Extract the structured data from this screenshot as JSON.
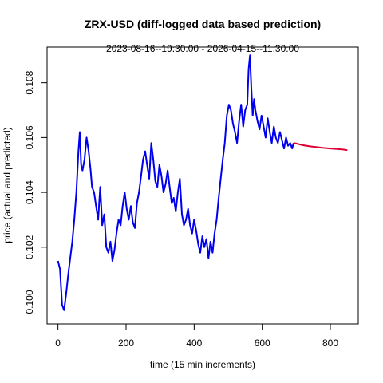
{
  "chart_data": {
    "type": "line",
    "title": "ZRX-USD (diff-logged data based prediction)",
    "subtitle": "2023-08-16--19:30:00  -  2026-04-15--11:30:00",
    "xlabel": "time (15 min increments)",
    "ylabel": "price (actual and predicted)",
    "xlim": [
      -32,
      882
    ],
    "ylim": [
      0.0992,
      0.1093
    ],
    "xticks": [
      0,
      200,
      400,
      600,
      800
    ],
    "yticks": [
      0.1,
      0.102,
      0.104,
      0.106,
      0.108
    ],
    "ytick_labels": [
      "0.100",
      "0.102",
      "0.104",
      "0.106",
      "0.108"
    ],
    "colors": {
      "actual": "#0000ee",
      "predicted": "#dd0033"
    },
    "series": [
      {
        "role": "actual",
        "x": [
          0,
          6,
          12,
          18,
          24,
          30,
          36,
          42,
          48,
          54,
          60,
          64,
          68,
          72,
          78,
          84,
          90,
          96,
          100,
          106,
          112,
          118,
          124,
          130,
          136,
          142,
          148,
          154,
          160,
          166,
          172,
          178,
          184,
          190,
          196,
          202,
          208,
          214,
          220,
          226,
          232,
          238,
          244,
          250,
          256,
          262,
          268,
          274,
          280,
          286,
          292,
          298,
          304,
          310,
          316,
          322,
          328,
          334,
          340,
          346,
          352,
          358,
          364,
          370,
          376,
          382,
          388,
          394,
          400,
          406,
          412,
          418,
          424,
          430,
          436,
          442,
          448,
          454,
          460,
          466,
          472,
          478,
          484,
          490,
          496,
          502,
          508,
          514,
          520,
          526,
          532,
          538,
          544,
          550,
          556,
          560,
          564,
          568,
          572,
          576,
          580,
          586,
          592,
          598,
          604,
          610,
          616,
          622,
          628,
          634,
          640,
          646,
          652,
          658,
          664,
          670,
          676,
          682,
          688,
          692
        ],
        "y": [
          0.1015,
          0.1012,
          0.0999,
          0.0997,
          0.1003,
          0.101,
          0.1016,
          0.1022,
          0.103,
          0.104,
          0.1055,
          0.1062,
          0.105,
          0.1048,
          0.1052,
          0.106,
          0.1055,
          0.1048,
          0.1042,
          0.104,
          0.1035,
          0.103,
          0.1042,
          0.1028,
          0.1032,
          0.102,
          0.1018,
          0.1022,
          0.1015,
          0.1019,
          0.1025,
          0.103,
          0.1028,
          0.1035,
          0.104,
          0.1034,
          0.103,
          0.1035,
          0.1029,
          0.1027,
          0.1036,
          0.104,
          0.1046,
          0.1052,
          0.1055,
          0.105,
          0.1045,
          0.1058,
          0.1052,
          0.1044,
          0.1042,
          0.105,
          0.1046,
          0.104,
          0.1043,
          0.1048,
          0.1042,
          0.1036,
          0.1038,
          0.1033,
          0.104,
          0.1045,
          0.1032,
          0.1028,
          0.103,
          0.1034,
          0.1028,
          0.1025,
          0.103,
          0.1026,
          0.1021,
          0.1018,
          0.1024,
          0.102,
          0.1023,
          0.1016,
          0.1022,
          0.1018,
          0.1025,
          0.103,
          0.1038,
          0.1045,
          0.1052,
          0.1058,
          0.1068,
          0.1072,
          0.107,
          0.1065,
          0.1062,
          0.1058,
          0.1066,
          0.1072,
          0.1064,
          0.107,
          0.1072,
          0.1085,
          0.109,
          0.1078,
          0.1068,
          0.1074,
          0.107,
          0.1066,
          0.1063,
          0.1068,
          0.1064,
          0.106,
          0.1067,
          0.1062,
          0.1058,
          0.1064,
          0.106,
          0.1058,
          0.1062,
          0.1059,
          0.1056,
          0.106,
          0.1057,
          0.1058,
          0.1056,
          0.1058
        ]
      },
      {
        "role": "predicted",
        "x": [
          692,
          700,
          720,
          740,
          760,
          780,
          800,
          820,
          840,
          850
        ],
        "y": [
          0.1058,
          0.10578,
          0.10572,
          0.10568,
          0.10565,
          0.10562,
          0.1056,
          0.10558,
          0.10556,
          0.10554
        ]
      }
    ]
  }
}
